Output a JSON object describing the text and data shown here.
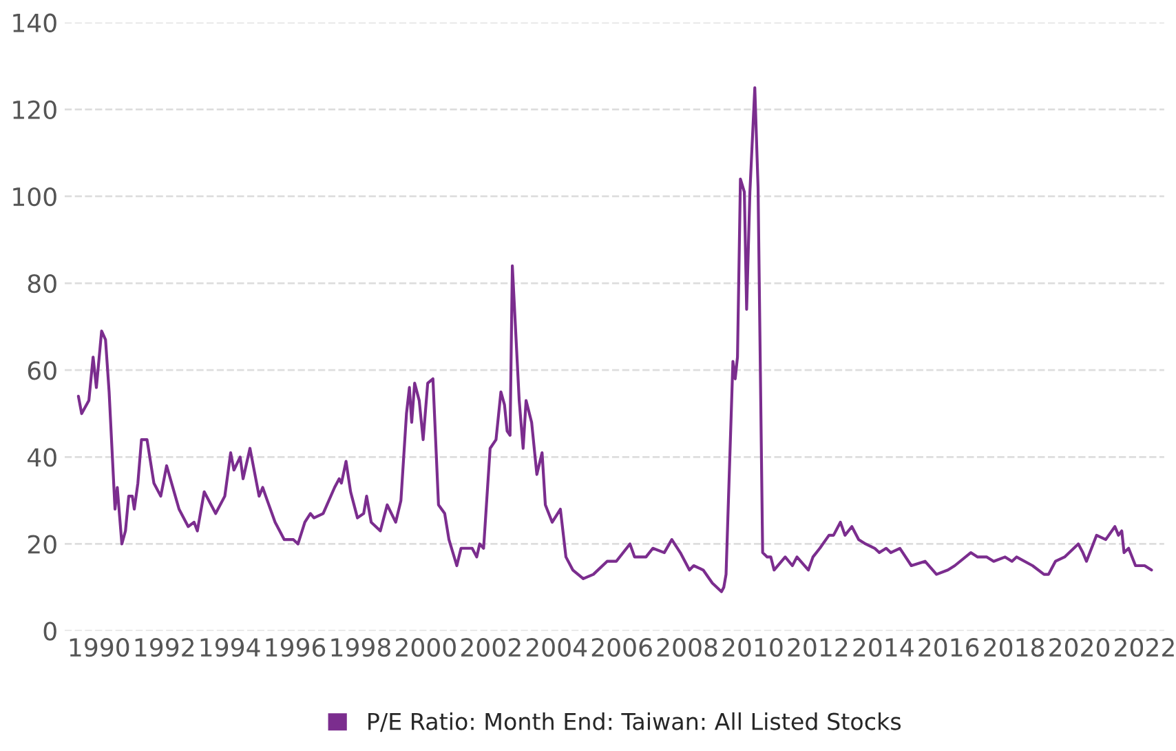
{
  "chart_data": {
    "type": "line",
    "x": [
      1989.37,
      1989.47,
      1989.69,
      1989.82,
      1989.92,
      1990.08,
      1990.2,
      1990.31,
      1990.49,
      1990.56,
      1990.7,
      1990.81,
      1990.91,
      1991.02,
      1991.08,
      1991.19,
      1991.3,
      1991.47,
      1991.68,
      1991.89,
      1992.07,
      1992.45,
      1992.73,
      1992.91,
      1993.01,
      1993.22,
      1993.57,
      1993.85,
      1994.03,
      1994.13,
      1994.32,
      1994.41,
      1994.62,
      1994.9,
      1995.01,
      1995.15,
      1995.39,
      1995.67,
      1995.95,
      1996.09,
      1996.3,
      1996.47,
      1996.58,
      1996.86,
      1997.21,
      1997.35,
      1997.42,
      1997.56,
      1997.7,
      1997.91,
      1998.1,
      1998.19,
      1998.33,
      1998.61,
      1998.82,
      1999.08,
      1999.24,
      1999.41,
      1999.5,
      1999.57,
      1999.66,
      1999.8,
      1999.92,
      2000.06,
      2000.22,
      2000.39,
      2000.58,
      2000.71,
      2000.95,
      2001.08,
      2001.42,
      2001.56,
      2001.65,
      2001.77,
      2001.97,
      2002.15,
      2002.3,
      2002.41,
      2002.49,
      2002.58,
      2002.65,
      2002.86,
      2002.98,
      2003.07,
      2003.24,
      2003.4,
      2003.56,
      2003.66,
      2003.87,
      2004.12,
      2004.29,
      2004.5,
      2004.82,
      2005.13,
      2005.55,
      2005.83,
      2006.25,
      2006.39,
      2006.74,
      2006.95,
      2007.3,
      2007.53,
      2007.79,
      2008.07,
      2008.2,
      2008.49,
      2008.77,
      2009.05,
      2009.12,
      2009.19,
      2009.4,
      2009.47,
      2009.54,
      2009.63,
      2009.75,
      2009.82,
      2009.92,
      2010.07,
      2010.17,
      2010.31,
      2010.45,
      2010.56,
      2010.66,
      2011.0,
      2011.22,
      2011.36,
      2011.71,
      2011.85,
      2012.06,
      2012.34,
      2012.48,
      2012.69,
      2012.83,
      2013.04,
      2013.25,
      2013.46,
      2013.74,
      2013.88,
      2014.09,
      2014.23,
      2014.51,
      2014.86,
      2015.28,
      2015.63,
      2015.98,
      2016.19,
      2016.68,
      2016.89,
      2017.17,
      2017.38,
      2017.73,
      2017.94,
      2018.08,
      2018.57,
      2018.92,
      2019.06,
      2019.27,
      2019.55,
      2019.97,
      2020.11,
      2020.22,
      2020.53,
      2020.81,
      2021.09,
      2021.2,
      2021.3,
      2021.37,
      2021.51,
      2021.72,
      2022.0,
      2022.21
    ],
    "series": [
      {
        "name": "P/E Ratio: Month End: Taiwan: All Listed Stocks",
        "color": "#7b2d8e",
        "values": [
          54,
          50,
          53,
          63,
          56,
          69,
          67,
          55,
          28,
          33,
          20,
          23,
          31,
          31,
          28,
          34,
          44,
          44,
          34,
          31,
          38,
          28,
          24,
          25,
          23,
          32,
          27,
          31,
          41,
          37,
          40,
          35,
          42,
          31,
          33,
          30,
          25,
          21,
          21,
          20,
          25,
          27,
          26,
          27,
          33,
          35,
          34,
          39,
          32,
          26,
          27,
          31,
          25,
          23,
          29,
          25,
          30,
          50,
          56,
          48,
          57,
          53,
          44,
          57,
          58,
          29,
          27,
          21,
          15,
          19,
          19,
          17,
          20,
          19,
          42,
          44,
          55,
          52,
          46,
          45,
          84,
          53,
          42,
          53,
          48,
          36,
          41,
          29,
          25,
          28,
          17,
          14,
          12,
          13,
          16,
          16,
          20,
          17,
          17,
          19,
          18,
          21,
          18,
          14,
          15,
          14,
          11,
          9,
          10,
          13,
          62,
          58,
          63,
          104,
          101,
          74,
          101,
          125,
          102,
          18,
          17,
          17,
          14,
          17,
          15,
          17,
          14,
          17,
          19,
          22,
          22,
          25,
          22,
          24,
          21,
          20,
          19,
          18,
          19,
          18,
          19,
          15,
          16,
          13,
          14,
          15,
          18,
          17,
          17,
          16,
          17,
          16,
          17,
          15,
          13,
          13,
          16,
          17,
          20,
          18,
          16,
          22,
          21,
          24,
          22,
          23,
          18,
          19,
          15,
          15,
          14
        ]
      }
    ],
    "xlim": [
      1988.95,
      2022.6
    ],
    "xticks": [
      1990,
      1992,
      1994,
      1996,
      1998,
      2000,
      2002,
      2004,
      2006,
      2008,
      2010,
      2012,
      2014,
      2016,
      2018,
      2020,
      2022
    ],
    "ylim": [
      0,
      140
    ],
    "yticks": [
      0,
      20,
      40,
      60,
      80,
      100,
      120,
      140
    ],
    "grid": "y",
    "legend": "bottom",
    "line_style": "solid",
    "marker": "none"
  }
}
